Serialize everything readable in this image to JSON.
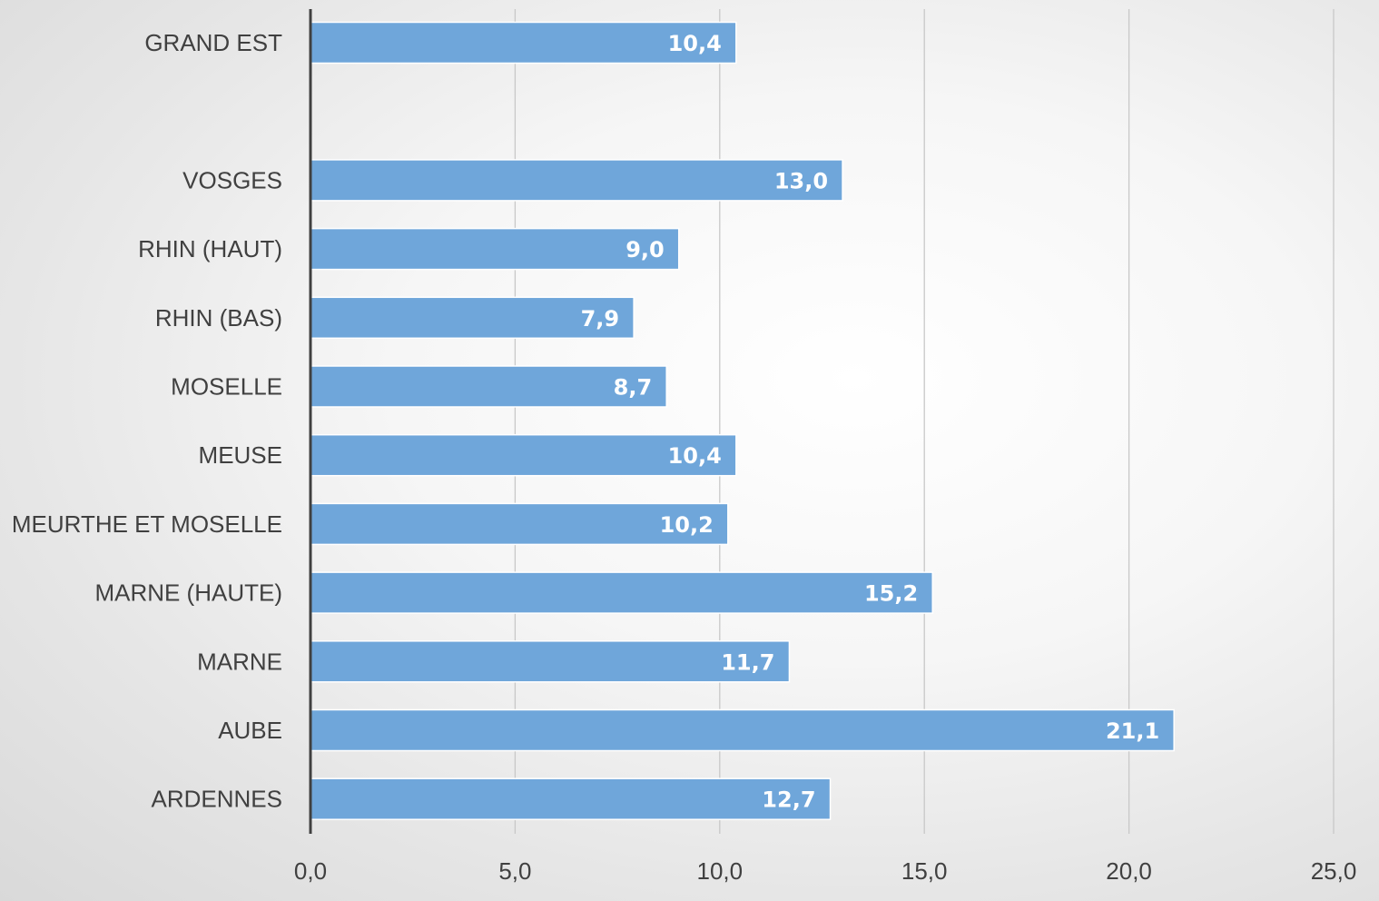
{
  "chart_data": {
    "type": "bar",
    "orientation": "horizontal",
    "categories": [
      "GRAND EST",
      "",
      "VOSGES",
      "RHIN (HAUT)",
      "RHIN (BAS)",
      "MOSELLE",
      "MEUSE",
      "MEURTHE ET MOSELLE",
      "MARNE (HAUTE)",
      "MARNE",
      "AUBE",
      "ARDENNES"
    ],
    "values": [
      10.4,
      null,
      13.0,
      9.0,
      7.9,
      8.7,
      10.4,
      10.2,
      15.2,
      11.7,
      21.1,
      12.7
    ],
    "value_labels": [
      "10,4",
      "",
      "13,0",
      "9,0",
      "7,9",
      "8,7",
      "10,4",
      "10,2",
      "15,2",
      "11,7",
      "21,1",
      "12,7"
    ],
    "xlim": [
      0,
      25
    ],
    "xticks": [
      0,
      5,
      10,
      15,
      20,
      25
    ],
    "xtick_labels": [
      "0,0",
      "5,0",
      "10,0",
      "15,0",
      "20,0",
      "25,0"
    ],
    "grid": "vertical",
    "legend": "none",
    "title": "",
    "xlabel": "",
    "ylabel": "",
    "colors": {
      "bar": "#6fa6da",
      "bar_border": "#ffffff",
      "grid": "#c8c8c8",
      "axis": "#404040",
      "label": "#404040",
      "data_label": "#ffffff"
    }
  }
}
